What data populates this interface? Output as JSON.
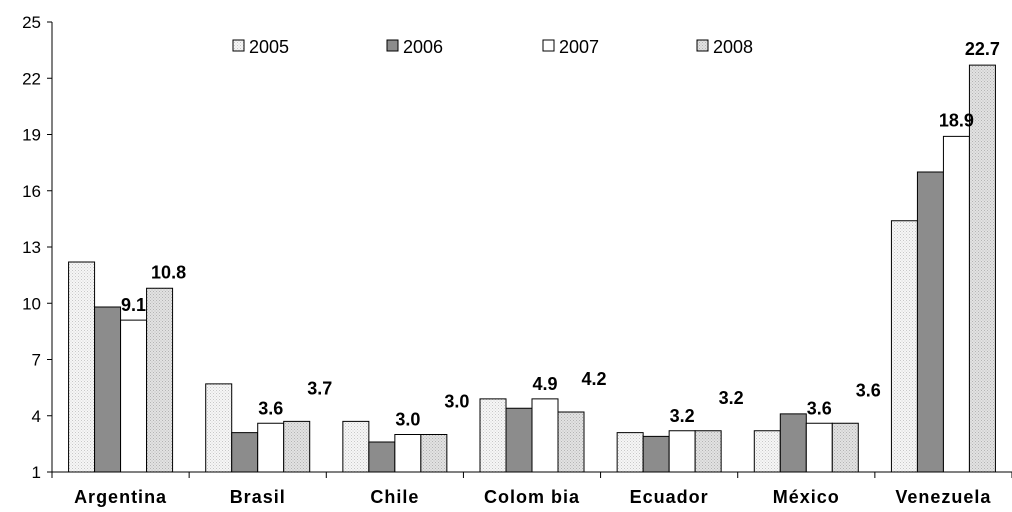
{
  "chart_data": {
    "type": "bar",
    "title": "",
    "xlabel": "",
    "ylabel": "",
    "categories": [
      "Argentina",
      "Brasil",
      "Chile",
      "Colom bia",
      "Ecuador",
      "México",
      "Venezuela"
    ],
    "series": [
      {
        "name": "2005",
        "values": [
          12.2,
          5.7,
          3.7,
          4.9,
          3.1,
          3.2,
          14.4
        ],
        "color": "#f1f1f1",
        "pattern": "dots"
      },
      {
        "name": "2006",
        "values": [
          9.8,
          3.1,
          2.6,
          4.4,
          2.9,
          4.1,
          17.0
        ],
        "color": "#8c8c8c",
        "pattern": "none"
      },
      {
        "name": "2007",
        "values": [
          9.1,
          3.6,
          3.0,
          4.9,
          3.2,
          3.6,
          18.9
        ],
        "color": "#ffffff",
        "pattern": "none"
      },
      {
        "name": "2008",
        "values": [
          10.8,
          3.7,
          3.0,
          4.2,
          3.2,
          3.6,
          22.7
        ],
        "color": "#dedede",
        "pattern": "dots"
      }
    ],
    "data_labels": [
      {
        "category_index": 0,
        "series_index": 2,
        "text": "9.1"
      },
      {
        "category_index": 0,
        "series_index": 3,
        "text": "10.8"
      },
      {
        "category_index": 1,
        "series_index": 2,
        "text": "3.6"
      },
      {
        "category_index": 1,
        "series_index": 3,
        "text": "3.7"
      },
      {
        "category_index": 2,
        "series_index": 2,
        "text": "3.0"
      },
      {
        "category_index": 2,
        "series_index": 3,
        "text": "3.0"
      },
      {
        "category_index": 3,
        "series_index": 2,
        "text": "4.9"
      },
      {
        "category_index": 3,
        "series_index": 3,
        "text": "4.2"
      },
      {
        "category_index": 4,
        "series_index": 2,
        "text": "3.2"
      },
      {
        "category_index": 4,
        "series_index": 3,
        "text": "3.2"
      },
      {
        "category_index": 5,
        "series_index": 2,
        "text": "3.6"
      },
      {
        "category_index": 5,
        "series_index": 3,
        "text": "3.6"
      },
      {
        "category_index": 6,
        "series_index": 2,
        "text": "18.9"
      },
      {
        "category_index": 6,
        "series_index": 3,
        "text": "22.7"
      }
    ],
    "ylim": [
      1,
      25
    ],
    "yticks": [
      1,
      4,
      7,
      10,
      13,
      16,
      19,
      22,
      25
    ],
    "ytick_labels": [
      "1",
      "4",
      "7",
      "10",
      "13",
      "16",
      "19",
      "22",
      "25"
    ],
    "grid": false,
    "legend_position": "top"
  }
}
